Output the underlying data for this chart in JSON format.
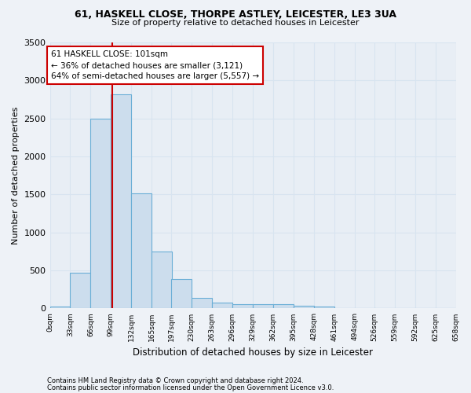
{
  "title1": "61, HASKELL CLOSE, THORPE ASTLEY, LEICESTER, LE3 3UA",
  "title2": "Size of property relative to detached houses in Leicester",
  "xlabel": "Distribution of detached houses by size in Leicester",
  "ylabel": "Number of detached properties",
  "footer1": "Contains HM Land Registry data © Crown copyright and database right 2024.",
  "footer2": "Contains public sector information licensed under the Open Government Licence v3.0.",
  "bin_edges": [
    0,
    33,
    66,
    99,
    132,
    165,
    197,
    230,
    263,
    296,
    329,
    362,
    395,
    428,
    461,
    494,
    526,
    559,
    592,
    625,
    658
  ],
  "bar_heights": [
    20,
    475,
    2500,
    2820,
    1510,
    750,
    385,
    140,
    75,
    55,
    55,
    55,
    40,
    20,
    5,
    3,
    2,
    1,
    1,
    0
  ],
  "bar_color": "#ccdded",
  "bar_edge_color": "#6aaed6",
  "property_size": 101,
  "vline_color": "#cc0000",
  "annotation_line1": "61 HASKELL CLOSE: 101sqm",
  "annotation_line2": "← 36% of detached houses are smaller (3,121)",
  "annotation_line3": "64% of semi-detached houses are larger (5,557) →",
  "annotation_box_color": "#cc0000",
  "ylim": [
    0,
    3500
  ],
  "yticks": [
    0,
    500,
    1000,
    1500,
    2000,
    2500,
    3000,
    3500
  ],
  "background_color": "#eef2f7",
  "grid_color": "#d8e4f0",
  "plot_bg_color": "#e8eef5"
}
